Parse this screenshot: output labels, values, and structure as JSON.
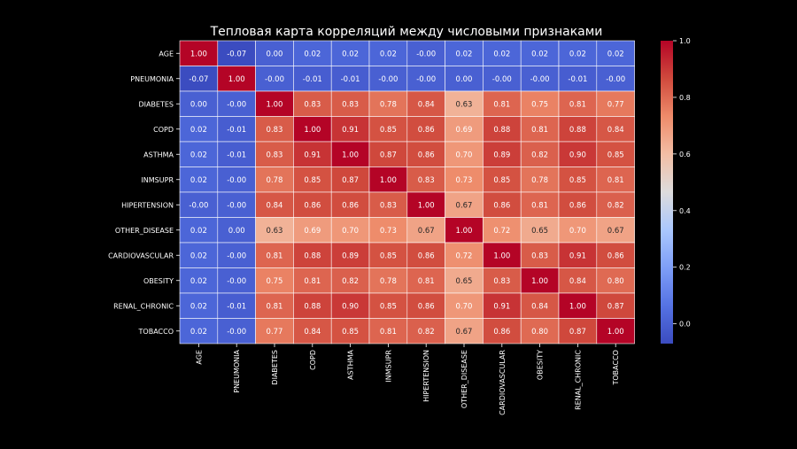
{
  "chart_data": {
    "type": "heatmap",
    "title": "Тепловая карта корреляций между числовыми признаками",
    "rows": [
      "AGE",
      "PNEUMONIA",
      "DIABETES",
      "COPD",
      "ASTHMA",
      "INMSUPR",
      "HIPERTENSION",
      "OTHER_DISEASE",
      "CARDIOVASCULAR",
      "OBESITY",
      "RENAL_CHRONIC",
      "TOBACCO"
    ],
    "columns": [
      "AGE",
      "PNEUMONIA",
      "DIABETES",
      "COPD",
      "ASTHMA",
      "INMSUPR",
      "HIPERTENSION",
      "OTHER_DISEASE",
      "CARDIOVASCULAR",
      "OBESITY",
      "RENAL_CHRONIC",
      "TOBACCO"
    ],
    "values": [
      [
        1.0,
        -0.07,
        0.0,
        0.02,
        0.02,
        0.02,
        -0.0,
        0.02,
        0.02,
        0.02,
        0.02,
        0.02
      ],
      [
        -0.07,
        1.0,
        -0.0,
        -0.01,
        -0.01,
        -0.0,
        -0.0,
        0.0,
        -0.0,
        -0.0,
        -0.01,
        -0.0
      ],
      [
        0.0,
        -0.0,
        1.0,
        0.83,
        0.83,
        0.78,
        0.84,
        0.63,
        0.81,
        0.75,
        0.81,
        0.77
      ],
      [
        0.02,
        -0.01,
        0.83,
        1.0,
        0.91,
        0.85,
        0.86,
        0.69,
        0.88,
        0.81,
        0.88,
        0.84
      ],
      [
        0.02,
        -0.01,
        0.83,
        0.91,
        1.0,
        0.87,
        0.86,
        0.7,
        0.89,
        0.82,
        0.9,
        0.85
      ],
      [
        0.02,
        -0.0,
        0.78,
        0.85,
        0.87,
        1.0,
        0.83,
        0.73,
        0.85,
        0.78,
        0.85,
        0.81
      ],
      [
        -0.0,
        -0.0,
        0.84,
        0.86,
        0.86,
        0.83,
        1.0,
        0.67,
        0.86,
        0.81,
        0.86,
        0.82
      ],
      [
        0.02,
        0.0,
        0.63,
        0.69,
        0.7,
        0.73,
        0.67,
        1.0,
        0.72,
        0.65,
        0.7,
        0.67
      ],
      [
        0.02,
        -0.0,
        0.81,
        0.88,
        0.89,
        0.85,
        0.86,
        0.72,
        1.0,
        0.83,
        0.91,
        0.86
      ],
      [
        0.02,
        -0.0,
        0.75,
        0.81,
        0.82,
        0.78,
        0.81,
        0.65,
        0.83,
        1.0,
        0.84,
        0.8
      ],
      [
        0.02,
        -0.01,
        0.81,
        0.88,
        0.9,
        0.85,
        0.86,
        0.7,
        0.91,
        0.84,
        1.0,
        0.87
      ],
      [
        0.02,
        -0.0,
        0.77,
        0.84,
        0.85,
        0.81,
        0.82,
        0.67,
        0.86,
        0.8,
        0.87,
        1.0
      ]
    ],
    "cell_labels": [
      [
        "1.00",
        "-0.07",
        "0.00",
        "0.02",
        "0.02",
        "0.02",
        "-0.00",
        "0.02",
        "0.02",
        "0.02",
        "0.02",
        "0.02"
      ],
      [
        "-0.07",
        "1.00",
        "-0.00",
        "-0.01",
        "-0.01",
        "-0.00",
        "-0.00",
        "0.00",
        "-0.00",
        "-0.00",
        "-0.01",
        "-0.00"
      ],
      [
        "0.00",
        "-0.00",
        "1.00",
        "0.83",
        "0.83",
        "0.78",
        "0.84",
        "0.63",
        "0.81",
        "0.75",
        "0.81",
        "0.77"
      ],
      [
        "0.02",
        "-0.01",
        "0.83",
        "1.00",
        "0.91",
        "0.85",
        "0.86",
        "0.69",
        "0.88",
        "0.81",
        "0.88",
        "0.84"
      ],
      [
        "0.02",
        "-0.01",
        "0.83",
        "0.91",
        "1.00",
        "0.87",
        "0.86",
        "0.70",
        "0.89",
        "0.82",
        "0.90",
        "0.85"
      ],
      [
        "0.02",
        "-0.00",
        "0.78",
        "0.85",
        "0.87",
        "1.00",
        "0.83",
        "0.73",
        "0.85",
        "0.78",
        "0.85",
        "0.81"
      ],
      [
        "-0.00",
        "-0.00",
        "0.84",
        "0.86",
        "0.86",
        "0.83",
        "1.00",
        "0.67",
        "0.86",
        "0.81",
        "0.86",
        "0.82"
      ],
      [
        "0.02",
        "0.00",
        "0.63",
        "0.69",
        "0.70",
        "0.73",
        "0.67",
        "1.00",
        "0.72",
        "0.65",
        "0.70",
        "0.67"
      ],
      [
        "0.02",
        "-0.00",
        "0.81",
        "0.88",
        "0.89",
        "0.85",
        "0.86",
        "0.72",
        "1.00",
        "0.83",
        "0.91",
        "0.86"
      ],
      [
        "0.02",
        "-0.00",
        "0.75",
        "0.81",
        "0.82",
        "0.78",
        "0.81",
        "0.65",
        "0.83",
        "1.00",
        "0.84",
        "0.80"
      ],
      [
        "0.02",
        "-0.01",
        "0.81",
        "0.88",
        "0.90",
        "0.85",
        "0.86",
        "0.70",
        "0.91",
        "0.84",
        "1.00",
        "0.87"
      ],
      [
        "0.02",
        "-0.00",
        "0.77",
        "0.84",
        "0.85",
        "0.81",
        "0.82",
        "0.67",
        "0.86",
        "0.80",
        "0.87",
        "1.00"
      ]
    ],
    "colorbar": {
      "range": [
        -0.07,
        1.0
      ],
      "ticks": [
        0.0,
        0.2,
        0.4,
        0.6,
        0.8,
        1.0
      ],
      "tick_labels": [
        "0.0",
        "0.2",
        "0.4",
        "0.6",
        "0.8",
        "1.0"
      ],
      "colormap": "coolwarm"
    },
    "grid": true,
    "colors": {
      "background": "#000000",
      "cold": "#3b4cc0",
      "neutral": "#dddcdc",
      "warm": "#b40426"
    }
  }
}
